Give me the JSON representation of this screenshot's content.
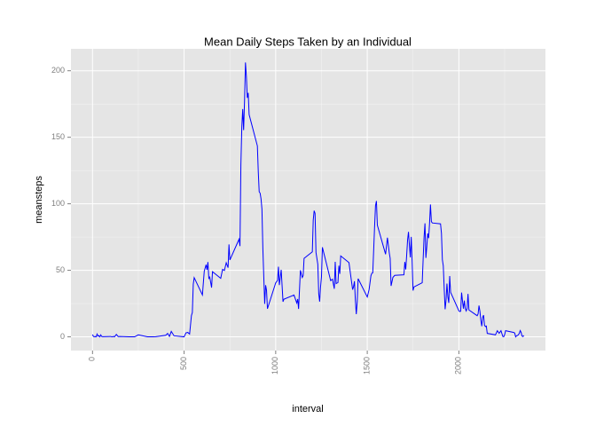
{
  "chart_data": {
    "type": "line",
    "title": "Mean Daily Steps Taken by an Individual",
    "x_label": "interval",
    "y_label": "meansteps",
    "x": [
      0,
      5,
      10,
      15,
      20,
      25,
      30,
      35,
      40,
      45,
      50,
      55,
      100,
      105,
      110,
      115,
      120,
      130,
      140,
      150,
      200,
      230,
      250,
      300,
      330,
      345,
      400,
      410,
      420,
      430,
      445,
      500,
      510,
      520,
      530,
      540,
      545,
      550,
      555,
      600,
      610,
      620,
      625,
      630,
      635,
      640,
      650,
      655,
      700,
      710,
      720,
      730,
      740,
      745,
      750,
      800,
      805,
      810,
      815,
      820,
      825,
      830,
      835,
      840,
      845,
      850,
      855,
      900,
      905,
      910,
      915,
      920,
      925,
      930,
      935,
      940,
      945,
      950,
      955,
      1000,
      1010,
      1015,
      1020,
      1030,
      1040,
      1045,
      1100,
      1115,
      1120,
      1125,
      1135,
      1145,
      1150,
      1155,
      1200,
      1205,
      1210,
      1215,
      1220,
      1230,
      1235,
      1240,
      1245,
      1250,
      1255,
      1300,
      1310,
      1320,
      1325,
      1330,
      1340,
      1345,
      1350,
      1355,
      1400,
      1420,
      1425,
      1430,
      1435,
      1440,
      1445,
      1450,
      1500,
      1510,
      1520,
      1525,
      1530,
      1535,
      1540,
      1545,
      1550,
      1555,
      1600,
      1610,
      1620,
      1625,
      1630,
      1640,
      1650,
      1700,
      1705,
      1710,
      1715,
      1720,
      1725,
      1730,
      1735,
      1740,
      1745,
      1750,
      1755,
      1800,
      1805,
      1810,
      1815,
      1820,
      1825,
      1830,
      1835,
      1840,
      1845,
      1850,
      1855,
      1900,
      1905,
      1910,
      1915,
      1920,
      1925,
      1930,
      1935,
      1940,
      1945,
      1950,
      1955,
      2000,
      2005,
      2010,
      2015,
      2020,
      2025,
      2030,
      2035,
      2040,
      2045,
      2050,
      2055,
      2100,
      2105,
      2110,
      2115,
      2120,
      2125,
      2130,
      2135,
      2140,
      2145,
      2150,
      2155,
      2200,
      2210,
      2220,
      2230,
      2240,
      2245,
      2250,
      2255,
      2300,
      2305,
      2310,
      2315,
      2320,
      2325,
      2330,
      2335,
      2340,
      2345,
      2350,
      2355
    ],
    "series": [
      {
        "name": "meansteps",
        "color": "#0000ff",
        "values": [
          1.7,
          0.3,
          0.1,
          0.2,
          0,
          2.1,
          0.5,
          0.9,
          0,
          1.5,
          0.3,
          0.1,
          0.3,
          0,
          0.1,
          0.3,
          0,
          1.8,
          0.2,
          0.3,
          0,
          0,
          1.5,
          0,
          0,
          0.1,
          1.2,
          2.6,
          0.3,
          4.1,
          0.8,
          0,
          3,
          3.3,
          2.1,
          16,
          18.3,
          39.5,
          44.5,
          31.5,
          49.3,
          54.2,
          50.4,
          56.2,
          44,
          44.9,
          37,
          49,
          44,
          50.7,
          49.9,
          55.7,
          52,
          69.5,
          57.8,
          73.4,
          68.2,
          129.4,
          157.5,
          171.2,
          155.4,
          177.3,
          206.2,
          195.9,
          179.6,
          183.4,
          167,
          143.5,
          124,
          109,
          108,
          103.7,
          95.97,
          66.2,
          45.2,
          24.8,
          38.8,
          34.98,
          21.1,
          40.6,
          42.4,
          52.7,
          38.9,
          50.4,
          26.4,
          28.3,
          31.4,
          25.5,
          28.4,
          21,
          50,
          44.6,
          46,
          59,
          63.9,
          87.7,
          94.8,
          92.8,
          63.4,
          54.5,
          32.4,
          26.5,
          37.7,
          45.1,
          67.3,
          42.3,
          43.3,
          36.1,
          56.4,
          40,
          40.8,
          53.5,
          47.3,
          60.8,
          55.8,
          35.5,
          37.6,
          41.8,
          27.5,
          17.1,
          26.1,
          43.7,
          30,
          35.5,
          45.96,
          47.8,
          48.1,
          65.3,
          82.9,
          98.7,
          102.1,
          83.96,
          62.1,
          74.5,
          63.2,
          59,
          38.3,
          44.7,
          46.2,
          46.6,
          56.3,
          50.7,
          61.2,
          72.7,
          78.9,
          68.9,
          59.7,
          75.1,
          56.5,
          34.8,
          37.5,
          40.7,
          58,
          74.7,
          85.3,
          59.3,
          67.8,
          77.7,
          74.2,
          85.3,
          99.5,
          86.6,
          85.6,
          84.9,
          77.8,
          58,
          53.4,
          36.3,
          20.7,
          27.4,
          40,
          30.2,
          25.5,
          45.7,
          33.5,
          19.6,
          19,
          19.3,
          33.3,
          26.8,
          21.2,
          27.3,
          21.3,
          19.5,
          21.3,
          32.3,
          20.2,
          15.9,
          17.2,
          23.5,
          19.2,
          12.5,
          8,
          14.7,
          16.3,
          8.7,
          7.8,
          8.1,
          2.6,
          1.5,
          4.6,
          2.7,
          4.6,
          0.3,
          0.1,
          1.6,
          4.6,
          3.3,
          2.8,
          0,
          0.8,
          0.96,
          1.6,
          2.6,
          4.7,
          3.3,
          0.6,
          0.2,
          1.1
        ]
      }
    ],
    "xlim": [
      -117.75,
      2472.75
    ],
    "xticks": [
      0,
      500,
      1000,
      1500,
      2000
    ],
    "x_minor_ticks": [
      250,
      750,
      1250,
      1750,
      2250
    ],
    "ylim": [
      -10.31,
      216.48
    ],
    "yticks": [
      0,
      50,
      100,
      150,
      200
    ],
    "y_minor_ticks": [
      25,
      75,
      125,
      175
    ],
    "grid": true,
    "background": "#e5e5e5",
    "grid_color": "#ffffff"
  }
}
